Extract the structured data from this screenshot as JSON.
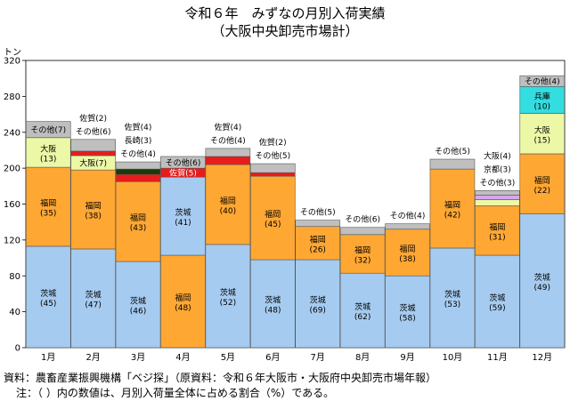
{
  "chart_data": {
    "type": "stacked-bar",
    "title": "令和６年　みずなの月別入荷実績",
    "subtitle": "（大阪中央卸売市場計）",
    "ylabel": "トン",
    "ylim": [
      0,
      320
    ],
    "yticks": [
      0,
      40,
      80,
      120,
      160,
      200,
      240,
      280,
      320
    ],
    "grid": false,
    "categories": [
      "1月",
      "2月",
      "3月",
      "4月",
      "5月",
      "6月",
      "7月",
      "8月",
      "9月",
      "10月",
      "11月",
      "12月"
    ],
    "colors": {
      "茨城": "#a6cbf0",
      "福岡": "#ffa733",
      "大阪": "#ecf8a6",
      "佐賀": "#e81c1c",
      "長崎": "#1a3a0a",
      "京都": "#d6a6f0",
      "兵庫": "#33dde0",
      "その他": "#bfbfbf"
    },
    "bars": [
      {
        "month": "1月",
        "segments": [
          {
            "name": "茨城",
            "value": 113,
            "label": "茨城",
            "pct": "(45)",
            "pos": "in"
          },
          {
            "name": "福岡",
            "value": 88,
            "label": "福岡",
            "pct": "(35)",
            "pos": "in"
          },
          {
            "name": "大阪",
            "value": 33,
            "label": "大阪",
            "pct": "(13)",
            "pos": "in"
          },
          {
            "name": "その他",
            "value": 18,
            "label": "その他(7)",
            "pct": "",
            "pos": "in"
          }
        ]
      },
      {
        "month": "2月",
        "segments": [
          {
            "name": "茨城",
            "value": 110,
            "label": "茨城",
            "pct": "(47)",
            "pos": "in"
          },
          {
            "name": "福岡",
            "value": 88,
            "label": "福岡",
            "pct": "(38)",
            "pos": "in"
          },
          {
            "name": "大阪",
            "value": 16,
            "label": "大阪(7)",
            "pct": "",
            "pos": "in"
          },
          {
            "name": "佐賀",
            "value": 5,
            "label": "佐賀(2)",
            "pct": "",
            "pos": "above"
          },
          {
            "name": "その他",
            "value": 13,
            "label": "その他(6)",
            "pct": "",
            "pos": "above"
          }
        ]
      },
      {
        "month": "3月",
        "segments": [
          {
            "name": "茨城",
            "value": 96,
            "label": "茨城",
            "pct": "(46)",
            "pos": "in"
          },
          {
            "name": "福岡",
            "value": 89,
            "label": "福岡",
            "pct": "(43)",
            "pos": "in"
          },
          {
            "name": "佐賀",
            "value": 8,
            "label": "佐賀(4)",
            "pct": "",
            "pos": "above"
          },
          {
            "name": "長崎",
            "value": 6,
            "label": "長崎(3)",
            "pct": "",
            "pos": "above"
          },
          {
            "name": "その他",
            "value": 8,
            "label": "その他(4)",
            "pct": "",
            "pos": "above"
          }
        ]
      },
      {
        "month": "4月",
        "segments": [
          {
            "name": "福岡",
            "value": 103,
            "label": "福岡",
            "pct": "(48)",
            "pos": "in"
          },
          {
            "name": "茨城",
            "value": 87,
            "label": "茨城",
            "pct": "(41)",
            "pos": "in"
          },
          {
            "name": "佐賀",
            "value": 10,
            "label": "佐賀(5)",
            "pct": "",
            "pos": "in"
          },
          {
            "name": "その他",
            "value": 13,
            "label": "その他(6)",
            "pct": "",
            "pos": "in"
          }
        ]
      },
      {
        "month": "5月",
        "segments": [
          {
            "name": "茨城",
            "value": 115,
            "label": "茨城",
            "pct": "(52)",
            "pos": "in"
          },
          {
            "name": "福岡",
            "value": 89,
            "label": "福岡",
            "pct": "(40)",
            "pos": "in"
          },
          {
            "name": "佐賀",
            "value": 9,
            "label": "佐賀(4)",
            "pct": "",
            "pos": "above"
          },
          {
            "name": "その他",
            "value": 9,
            "label": "その他(4)",
            "pct": "",
            "pos": "above"
          }
        ]
      },
      {
        "month": "6月",
        "segments": [
          {
            "name": "茨城",
            "value": 98,
            "label": "茨城",
            "pct": "(48)",
            "pos": "in"
          },
          {
            "name": "福岡",
            "value": 93,
            "label": "福岡",
            "pct": "(45)",
            "pos": "in"
          },
          {
            "name": "佐賀",
            "value": 4,
            "label": "佐賀(2)",
            "pct": "",
            "pos": "above"
          },
          {
            "name": "その他",
            "value": 10,
            "label": "その他(5)",
            "pct": "",
            "pos": "above"
          }
        ]
      },
      {
        "month": "7月",
        "segments": [
          {
            "name": "茨城",
            "value": 98,
            "label": "茨城",
            "pct": "(69)",
            "pos": "in"
          },
          {
            "name": "福岡",
            "value": 37,
            "label": "福岡",
            "pct": "(26)",
            "pos": "in"
          },
          {
            "name": "その他",
            "value": 7,
            "label": "その他(5)",
            "pct": "",
            "pos": "above"
          }
        ]
      },
      {
        "month": "8月",
        "segments": [
          {
            "name": "茨城",
            "value": 83,
            "label": "茨城",
            "pct": "(62)",
            "pos": "in"
          },
          {
            "name": "福岡",
            "value": 43,
            "label": "福岡",
            "pct": "(32)",
            "pos": "in"
          },
          {
            "name": "その他",
            "value": 8,
            "label": "その他(6)",
            "pct": "",
            "pos": "above"
          }
        ]
      },
      {
        "month": "9月",
        "segments": [
          {
            "name": "茨城",
            "value": 80,
            "label": "茨城",
            "pct": "(58)",
            "pos": "in"
          },
          {
            "name": "福岡",
            "value": 52,
            "label": "福岡",
            "pct": "(38)",
            "pos": "in"
          },
          {
            "name": "その他",
            "value": 6,
            "label": "その他(4)",
            "pct": "",
            "pos": "above"
          }
        ]
      },
      {
        "month": "10月",
        "segments": [
          {
            "name": "茨城",
            "value": 111,
            "label": "茨城",
            "pct": "(53)",
            "pos": "in"
          },
          {
            "name": "福岡",
            "value": 88,
            "label": "福岡",
            "pct": "(42)",
            "pos": "in"
          },
          {
            "name": "その他",
            "value": 11,
            "label": "その他(5)",
            "pct": "",
            "pos": "above"
          }
        ]
      },
      {
        "month": "11月",
        "segments": [
          {
            "name": "茨城",
            "value": 103,
            "label": "茨城",
            "pct": "(59)",
            "pos": "in"
          },
          {
            "name": "福岡",
            "value": 55,
            "label": "福岡",
            "pct": "(31)",
            "pos": "in"
          },
          {
            "name": "大阪",
            "value": 7,
            "label": "大阪(4)",
            "pct": "",
            "pos": "above"
          },
          {
            "name": "京都",
            "value": 5,
            "label": "京都(3)",
            "pct": "",
            "pos": "above"
          },
          {
            "name": "その他",
            "value": 5,
            "label": "その他(3)",
            "pct": "",
            "pos": "above"
          }
        ]
      },
      {
        "month": "12月",
        "segments": [
          {
            "name": "茨城",
            "value": 149,
            "label": "茨城",
            "pct": "(49)",
            "pos": "in"
          },
          {
            "name": "福岡",
            "value": 67,
            "label": "福岡",
            "pct": "(22)",
            "pos": "in"
          },
          {
            "name": "大阪",
            "value": 45,
            "label": "大阪",
            "pct": "(15)",
            "pos": "in"
          },
          {
            "name": "兵庫",
            "value": 30,
            "label": "兵庫",
            "pct": "(10)",
            "pos": "in"
          },
          {
            "name": "その他",
            "value": 12,
            "label": "その他(4)",
            "pct": "",
            "pos": "in"
          }
        ]
      }
    ]
  },
  "notes": {
    "source": "資料：農畜産業振興機構「ベジ探」（原資料：令和６年大阪市・大阪府中央卸売市場年報）",
    "note": "注：（ ）内の数値は、月別入荷量全体に占める割合（%）である。"
  }
}
